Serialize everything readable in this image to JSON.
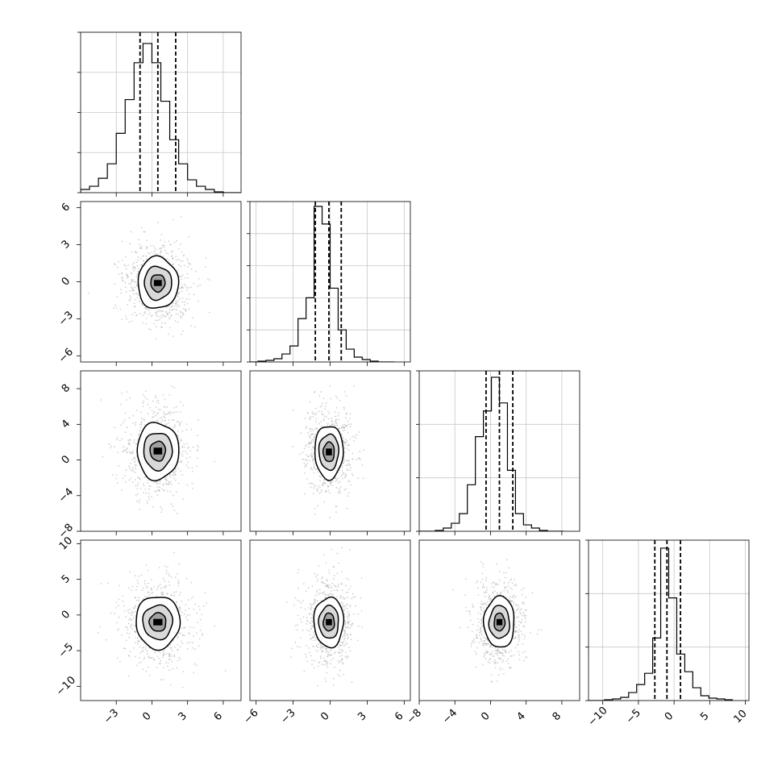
{
  "chart_data": {
    "type": "corner",
    "grid": true,
    "dimensions": [
      {
        "ticks": [
          -3,
          0,
          3,
          6
        ],
        "tick_labels": [
          "−3",
          "0",
          "3",
          "6"
        ],
        "range": [
          -6.0,
          7.5
        ],
        "quantiles": [
          -1.0,
          0.5,
          2.0
        ],
        "hist_step": 0.75,
        "hist_y_ticks": [
          0,
          1,
          2,
          3,
          4
        ]
      },
      {
        "ticks": [
          -6,
          -3,
          0,
          3,
          6
        ],
        "tick_labels": [
          "−6",
          "−3",
          "0",
          "3",
          "6"
        ],
        "range": [
          -6.5,
          6.5
        ],
        "quantiles": [
          -1.2,
          -0.1,
          0.9
        ],
        "hist_step": 0.65,
        "hist_y_ticks": [
          0,
          1,
          2,
          3,
          4,
          5
        ]
      },
      {
        "ticks": [
          -8,
          -4,
          0,
          4,
          8
        ],
        "tick_labels": [
          "−8",
          "−4",
          "0",
          "4",
          "8"
        ],
        "range": [
          -8.0,
          10.0
        ],
        "quantiles": [
          -0.5,
          1.0,
          2.5
        ],
        "hist_step": 0.9,
        "hist_y_ticks": [
          0,
          1,
          2,
          3
        ]
      },
      {
        "ticks": [
          -10,
          -5,
          0,
          5,
          10
        ],
        "tick_labels": [
          "−10",
          "−5",
          "0",
          "5",
          "10"
        ],
        "range": [
          -12.0,
          10.5
        ],
        "quantiles": [
          -2.7,
          -1.0,
          0.9
        ],
        "hist_step": 1.125,
        "hist_y_ticks": [
          0,
          1,
          2,
          3
        ]
      }
    ],
    "histograms": [
      [
        0.02,
        0.04,
        0.09,
        0.18,
        0.37,
        0.58,
        0.81,
        0.93,
        0.81,
        0.57,
        0.33,
        0.18,
        0.08,
        0.04,
        0.02,
        0.005,
        0,
        0
      ],
      [
        0,
        0.005,
        0.01,
        0.02,
        0.05,
        0.1,
        0.27,
        0.4,
        0.97,
        0.86,
        0.46,
        0.2,
        0.08,
        0.03,
        0.015,
        0.005,
        0,
        0
      ],
      [
        0,
        0,
        0.005,
        0.02,
        0.05,
        0.11,
        0.29,
        0.59,
        0.75,
        0.96,
        0.8,
        0.38,
        0.11,
        0.04,
        0.02,
        0.005,
        0,
        0
      ],
      [
        0,
        0,
        0.005,
        0.01,
        0.02,
        0.05,
        0.1,
        0.17,
        0.39,
        0.95,
        0.64,
        0.29,
        0.18,
        0.08,
        0.03,
        0.015,
        0.01,
        0.005
      ]
    ],
    "pairs": [
      {
        "row": 1,
        "col": 0,
        "center": [
          0.5,
          -0.1
        ],
        "levels": [
          [
            1.7,
            2.1
          ],
          [
            1.15,
            1.35
          ],
          [
            0.6,
            0.7
          ]
        ]
      },
      {
        "row": 2,
        "col": 0,
        "center": [
          0.5,
          1.0
        ],
        "levels": [
          [
            1.75,
            3.2
          ],
          [
            1.2,
            2.1
          ],
          [
            0.65,
            1.1
          ]
        ]
      },
      {
        "row": 2,
        "col": 1,
        "center": [
          -0.1,
          0.9
        ],
        "levels": [
          [
            1.15,
            3.0
          ],
          [
            0.8,
            2.0
          ],
          [
            0.45,
            1.1
          ]
        ]
      },
      {
        "row": 3,
        "col": 0,
        "center": [
          0.5,
          -1.0
        ],
        "levels": [
          [
            1.85,
            3.7
          ],
          [
            1.25,
            2.4
          ],
          [
            0.7,
            1.3
          ]
        ]
      },
      {
        "row": 3,
        "col": 1,
        "center": [
          -0.1,
          -1.0
        ],
        "levels": [
          [
            1.2,
            3.5
          ],
          [
            0.8,
            2.3
          ],
          [
            0.45,
            1.25
          ]
        ]
      },
      {
        "row": 3,
        "col": 2,
        "center": [
          1.0,
          -1.0
        ],
        "levels": [
          [
            1.7,
            3.6
          ],
          [
            1.15,
            2.3
          ],
          [
            0.6,
            1.25
          ]
        ]
      }
    ]
  }
}
